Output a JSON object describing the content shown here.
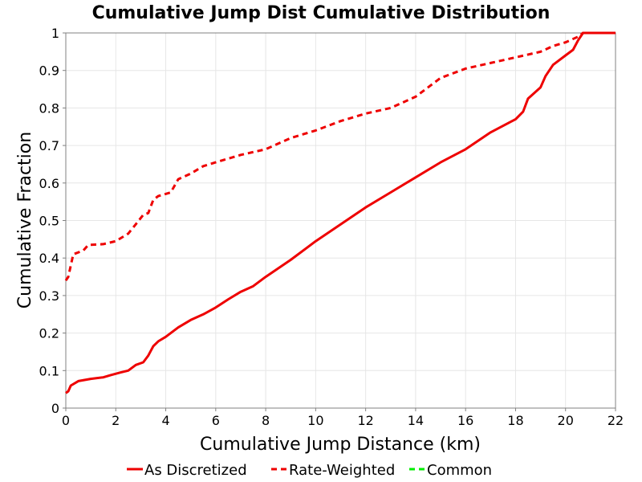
{
  "chart_data": {
    "type": "line",
    "title": "Cumulative Jump Dist Cumulative Distribution",
    "xlabel": "Cumulative Jump Distance (km)",
    "ylabel": "Cumulative Fraction",
    "xlim": [
      0,
      22
    ],
    "ylim": [
      0,
      1
    ],
    "x_ticks": [
      "0",
      "2",
      "4",
      "6",
      "8",
      "10",
      "12",
      "14",
      "16",
      "18",
      "20",
      "22"
    ],
    "y_ticks": [
      "0",
      "0.1",
      "0.2",
      "0.3",
      "0.4",
      "0.5",
      "0.6",
      "0.7",
      "0.8",
      "0.9",
      "1"
    ],
    "grid": true,
    "legend_position": "bottom",
    "colors": {
      "as_discretized": "#ee0000",
      "rate_weighted": "#ee0000",
      "common": "#00ee00",
      "grid": "#e6e6e6",
      "axis": "#808080"
    },
    "series": [
      {
        "name": "As Discretized",
        "style": "solid",
        "x": [
          0,
          0.1,
          0.2,
          0.5,
          1.0,
          1.5,
          1.8,
          2.2,
          2.5,
          2.8,
          3.1,
          3.3,
          3.5,
          3.7,
          4.0,
          4.5,
          5.0,
          5.5,
          6.0,
          6.5,
          7.0,
          7.5,
          8.0,
          9.0,
          10.0,
          11.0,
          12.0,
          13.0,
          14.0,
          15.0,
          16.0,
          17.0,
          18.0,
          18.3,
          18.5,
          19.0,
          19.2,
          19.5,
          20.0,
          20.3,
          20.5,
          20.7,
          21.0,
          22.0
        ],
        "y": [
          0.04,
          0.045,
          0.06,
          0.072,
          0.078,
          0.082,
          0.088,
          0.095,
          0.1,
          0.115,
          0.122,
          0.14,
          0.165,
          0.178,
          0.19,
          0.215,
          0.235,
          0.25,
          0.268,
          0.29,
          0.31,
          0.325,
          0.35,
          0.395,
          0.445,
          0.49,
          0.535,
          0.575,
          0.615,
          0.655,
          0.69,
          0.735,
          0.77,
          0.79,
          0.825,
          0.855,
          0.885,
          0.915,
          0.94,
          0.955,
          0.98,
          1.0,
          1.0,
          1.0
        ]
      },
      {
        "name": "Rate-Weighted",
        "style": "dashed",
        "x": [
          0,
          0.1,
          0.3,
          0.7,
          0.9,
          1.5,
          2.0,
          2.5,
          2.8,
          3.1,
          3.3,
          3.5,
          3.7,
          4.2,
          4.5,
          5.0,
          5.5,
          6.0,
          7.0,
          8.0,
          8.5,
          9.0,
          10.0,
          11.0,
          12.0,
          13.0,
          14.0,
          14.5,
          15.0,
          16.0,
          17.0,
          18.0,
          19.0,
          19.5,
          20.0,
          20.5,
          20.7,
          21.0,
          22.0
        ],
        "y": [
          0.34,
          0.35,
          0.41,
          0.42,
          0.435,
          0.437,
          0.445,
          0.465,
          0.49,
          0.515,
          0.52,
          0.555,
          0.565,
          0.575,
          0.61,
          0.625,
          0.645,
          0.655,
          0.675,
          0.69,
          0.705,
          0.72,
          0.74,
          0.765,
          0.785,
          0.8,
          0.83,
          0.855,
          0.88,
          0.905,
          0.92,
          0.935,
          0.95,
          0.965,
          0.975,
          0.99,
          1.0,
          1.0,
          1.0
        ]
      },
      {
        "name": "Common",
        "style": "dashed",
        "x": [],
        "y": []
      }
    ]
  }
}
